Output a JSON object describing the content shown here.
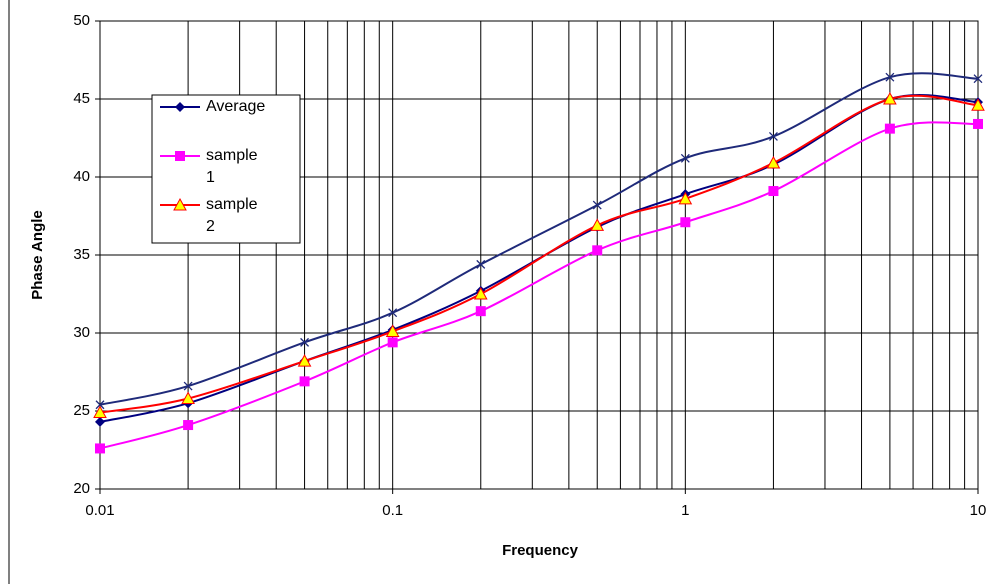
{
  "chart_data": {
    "type": "line",
    "x_label": "Frequency",
    "y_label": "Phase Angle",
    "x": [
      0.01,
      0.02,
      0.05,
      0.1,
      0.2,
      0.5,
      1,
      2,
      5,
      10
    ],
    "series": [
      {
        "color": "#1f2a7a",
        "marker": "x",
        "values": [
          25.4,
          26.6,
          29.4,
          31.3,
          34.4,
          38.2,
          41.2,
          42.6,
          46.4,
          46.3
        ]
      },
      {
        "name": "Average",
        "color": "#000080",
        "marker": "diamond",
        "values": [
          24.3,
          25.5,
          28.2,
          30.2,
          32.7,
          36.8,
          38.9,
          40.8,
          45.0,
          44.8
        ]
      },
      {
        "name": "sample 1",
        "color": "#ff00ff",
        "marker": "square",
        "values": [
          22.6,
          24.1,
          26.9,
          29.4,
          31.4,
          35.3,
          37.1,
          39.1,
          43.1,
          43.4
        ]
      },
      {
        "name": "sample 2",
        "color": "#ff0000",
        "marker": "triangle",
        "values": [
          24.9,
          25.8,
          28.2,
          30.1,
          32.5,
          36.9,
          38.6,
          40.9,
          45.0,
          44.6
        ]
      }
    ],
    "xscale": "log",
    "xlim": [
      0.01,
      10
    ],
    "xticks": [
      0.01,
      0.1,
      1,
      10
    ],
    "xgrid": [
      0.02,
      0.03,
      0.04,
      0.05,
      0.06,
      0.07,
      0.08,
      0.09,
      0.2,
      0.3,
      0.4,
      0.5,
      0.6,
      0.7,
      0.8,
      0.9,
      2,
      3,
      4,
      5,
      6,
      7,
      8,
      9
    ],
    "ylim": [
      20,
      50
    ],
    "yticks": [
      20,
      25,
      30,
      35,
      40,
      45,
      50
    ],
    "grid": true,
    "legend": "upper left"
  }
}
